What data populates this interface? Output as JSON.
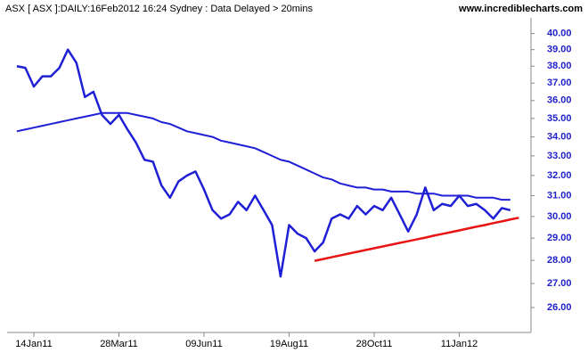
{
  "chart_data": {
    "type": "line",
    "title": "ASX [ ASX ]:DAILY:16Feb2012 16:24 Sydney : Data Delayed > 20mins",
    "source": "www.incrediblecharts.com",
    "log_scale": true,
    "grid": false,
    "categories": [
      null,
      null,
      "14Jan11",
      null,
      null,
      null,
      null,
      null,
      null,
      null,
      null,
      null,
      "28Mar11",
      null,
      null,
      null,
      null,
      null,
      null,
      null,
      null,
      null,
      "09Jun11",
      null,
      null,
      null,
      null,
      null,
      null,
      null,
      null,
      null,
      "19Aug11",
      null,
      null,
      null,
      null,
      null,
      null,
      null,
      null,
      null,
      "28Oct11",
      null,
      null,
      null,
      null,
      null,
      null,
      null,
      null,
      null,
      "11Jan12",
      null,
      null,
      null,
      null,
      null,
      null,
      null
    ],
    "series": [
      {
        "color": "#1f1fd6",
        "values": [
          38.0,
          37.9,
          36.8,
          37.4,
          37.4,
          37.9,
          39.0,
          38.2,
          36.2,
          36.5,
          35.2,
          34.7,
          35.2,
          34.4,
          33.7,
          32.8,
          32.7,
          31.5,
          30.9,
          31.7,
          32.0,
          32.2,
          31.3,
          30.3,
          29.9,
          30.1,
          30.7,
          30.3,
          31.0,
          30.3,
          29.6,
          27.3,
          29.6,
          29.2,
          29.0,
          28.4,
          28.8,
          29.9,
          30.1,
          29.9,
          30.5,
          30.1,
          30.5,
          30.3,
          30.9,
          30.1,
          29.3,
          30.1,
          31.4,
          30.3,
          30.6,
          30.5,
          31.0,
          30.5,
          30.6,
          30.3,
          29.9,
          30.4,
          30.3,
          null
        ]
      },
      {
        "color": "#1f1fd6",
        "values": [
          34.3,
          34.4,
          34.5,
          34.6,
          34.7,
          34.8,
          34.9,
          35.0,
          35.1,
          35.2,
          35.3,
          35.3,
          35.3,
          35.3,
          35.2,
          35.1,
          35.0,
          34.8,
          34.7,
          34.5,
          34.3,
          34.2,
          34.1,
          34.0,
          33.8,
          33.7,
          33.6,
          33.5,
          33.4,
          33.2,
          33.0,
          32.8,
          32.7,
          32.5,
          32.3,
          32.1,
          31.9,
          31.8,
          31.6,
          31.5,
          31.4,
          31.4,
          31.3,
          31.3,
          31.2,
          31.2,
          31.2,
          31.1,
          31.1,
          31.1,
          31.0,
          31.0,
          31.0,
          31.0,
          30.9,
          30.9,
          30.9,
          30.8,
          30.8,
          null
        ]
      },
      {
        "color": "#e81414",
        "values": [
          null,
          null,
          null,
          null,
          null,
          null,
          null,
          null,
          null,
          null,
          null,
          null,
          null,
          null,
          null,
          null,
          null,
          null,
          null,
          null,
          null,
          null,
          null,
          null,
          null,
          null,
          null,
          null,
          null,
          null,
          null,
          null,
          null,
          null,
          null,
          27.98,
          28.06,
          28.14,
          28.22,
          28.3,
          28.38,
          28.46,
          28.54,
          28.62,
          28.7,
          28.78,
          28.86,
          28.94,
          29.02,
          29.11,
          29.19,
          29.27,
          29.35,
          29.44,
          29.52,
          29.6,
          29.69,
          29.77,
          29.86,
          29.94
        ]
      }
    ],
    "ylim": [
      25,
      41
    ],
    "yticks": [
      {
        "value": 26,
        "label": "26.00"
      },
      {
        "value": 27,
        "label": "27.00"
      },
      {
        "value": 28,
        "label": "28.00"
      },
      {
        "value": 29,
        "label": "29.00"
      },
      {
        "value": 30,
        "label": "30.00"
      },
      {
        "value": 31,
        "label": "31.00"
      },
      {
        "value": 32,
        "label": "32.00"
      },
      {
        "value": 33,
        "label": "33.00"
      },
      {
        "value": 34,
        "label": "34.00"
      },
      {
        "value": 35,
        "label": "35.00"
      },
      {
        "value": 36,
        "label": "36.00"
      },
      {
        "value": 37,
        "label": "37.00"
      },
      {
        "value": 38,
        "label": "38.00"
      },
      {
        "value": 39,
        "label": "39.00"
      },
      {
        "value": 40,
        "label": "40.00"
      }
    ]
  }
}
